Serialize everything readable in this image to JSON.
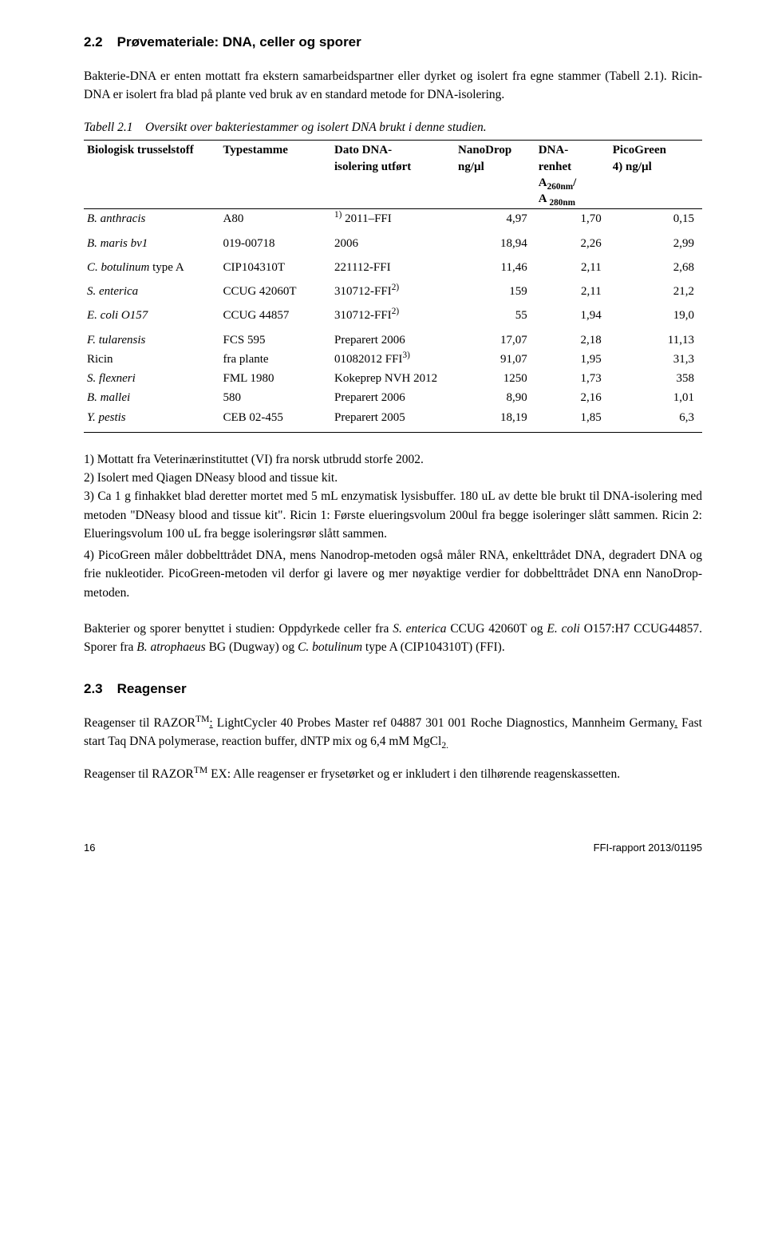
{
  "section22": {
    "num": "2.2",
    "title": "Prøvemateriale: DNA, celler og sporer",
    "para": "Bakterie-DNA er enten mottatt fra ekstern samarbeidspartner eller dyrket og isolert fra egne stammer (Tabell 2.1). Ricin-DNA er isolert fra blad på plante ved bruk av en standard metode for DNA-isolering."
  },
  "table": {
    "caption_label": "Tabell 2.1",
    "caption_text": "Oversikt over bakteriestammer og isolert DNA brukt i denne studien.",
    "headers": {
      "c1": "Biologisk trusselstoff",
      "c2": "Typestamme",
      "c3a": "Dato DNA-",
      "c3b": "isolering utført",
      "c4a": "NanoDrop",
      "c4b": "ng/µl",
      "c5a": "DNA-",
      "c5b": "renhet",
      "c5c_pre": "A",
      "c5c_sub": "260nm",
      "c5c_mid": "/",
      "c5d_pre": "A ",
      "c5d_sub": "280nm",
      "c6a": "PicoGreen",
      "c6b": "4) ng/µl"
    },
    "rows": [
      {
        "c1_i": "B. anthracis",
        "c2": "A80",
        "c3_sup": "1)",
        "c3": " 2011–FFI",
        "c4": "4,97",
        "c5": "1,70",
        "c6": "0,15"
      },
      {
        "c1_i": "B. maris bv1",
        "c2": "019-00718",
        "c3": "2006",
        "c4": "18,94",
        "c5": "2,26",
        "c6": "2,99"
      },
      {
        "c1_i": "C. botulinum",
        "c1_rest": " type A",
        "c2": "CIP104310T",
        "c3": "221112-FFI",
        "c4": "11,46",
        "c5": "2,11",
        "c6": "2,68"
      },
      {
        "c1_i": "S. enterica",
        "c2": "CCUG 42060T",
        "c3": "310712-FFI",
        "c3_sup_after": "2)",
        "c4": "159",
        "c5": "2,11",
        "c6": "21,2"
      },
      {
        "c1_i": "E. coli O157",
        "c2": "CCUG 44857",
        "c3": "310712-FFI",
        "c3_sup_after": "2)",
        "c4": "55",
        "c5": "1,94",
        "c6": "19,0"
      },
      {
        "c1_i": "F. tularensis",
        "c2": "FCS 595",
        "c3": "Preparert 2006",
        "c4": "17,07",
        "c5": "2,18",
        "c6": "11,13"
      },
      {
        "c1": "Ricin",
        "c2": "fra plante",
        "c3": "01082012 FFI",
        "c3_sup_after": "3)",
        "c4": "91,07",
        "c5": "1,95",
        "c6": "31,3"
      },
      {
        "c1_i": "S. flexneri",
        "c2": "FML  1980",
        "c3": "Kokeprep NVH 2012",
        "c4": "1250",
        "c5": "1,73",
        "c6": "358"
      },
      {
        "c1_i": "B. mallei",
        "c2": "580",
        "c3": "Preparert 2006",
        "c4": "8,90",
        "c5": "2,16",
        "c6": "1,01"
      },
      {
        "c1_i": "Y. pestis",
        "c2": "CEB 02-455",
        "c3": "Preparert 2005",
        "c4": "18,19",
        "c5": "1,85",
        "c6": "6,3"
      }
    ],
    "col_widths": [
      "22%",
      "18%",
      "20%",
      "13%",
      "12%",
      "15%"
    ]
  },
  "notes": {
    "n1": "1) Mottatt fra Veterinærinstituttet (VI) fra norsk utbrudd storfe 2002.",
    "n2": "2) Isolert med Qiagen DNeasy blood and tissue kit.",
    "n3": "3) Ca 1 g finhakket blad deretter mortet med 5 mL enzymatisk lysisbuffer. 180 uL av dette ble brukt til DNA-isolering med metoden \"DNeasy blood and tissue kit\". Ricin 1: Første elueringsvolum 200ul fra begge isoleringer slått sammen. Ricin 2: Elueringsvolum 100 uL fra begge isoleringsrør slått sammen.",
    "n4": "4) PicoGreen måler dobbelttrådet DNA, mens Nanodrop-metoden også måler RNA, enkelttrådet DNA, degradert DNA og frie nukleotider. PicoGreen-metoden vil derfor gi lavere og mer nøyaktige verdier for dobbelttrådet DNA enn NanoDrop-metoden."
  },
  "para_after_notes": {
    "pre": "Bakterier og sporer benyttet i studien:  Oppdyrkede celler fra ",
    "i1": "S. enterica",
    "mid1": " CCUG 42060T og ",
    "i2": "E. coli",
    "mid2": " O157:H7  CCUG44857. Sporer fra ",
    "i3": "B. atrophaeus",
    "mid3": " BG (Dugway) og ",
    "i4": "C. botulinum",
    "end": " type A (CIP104310T) (FFI)."
  },
  "section23": {
    "num": "2.3",
    "title": "Reagenser",
    "para1_pre": "Reagenser til RAZOR",
    "para1_tm": "TM",
    "para1_rest": ": LightCycler 40 Probes Master ref 04887 301 001 Roche Diagnostics, Mannheim Germany. Fast start Taq DNA polymerase, reaction buffer, dNTP mix og 6,4 mM MgCl",
    "para1_sub": "2.",
    "para2_pre": "Reagenser til RAZOR",
    "para2_tm": "TM",
    "para2_rest": " EX: Alle reagenser er frysetørket og er inkludert i den tilhørende reagenskassetten."
  },
  "footer": {
    "page": "16",
    "ref": "FFI-rapport 2013/01195"
  }
}
